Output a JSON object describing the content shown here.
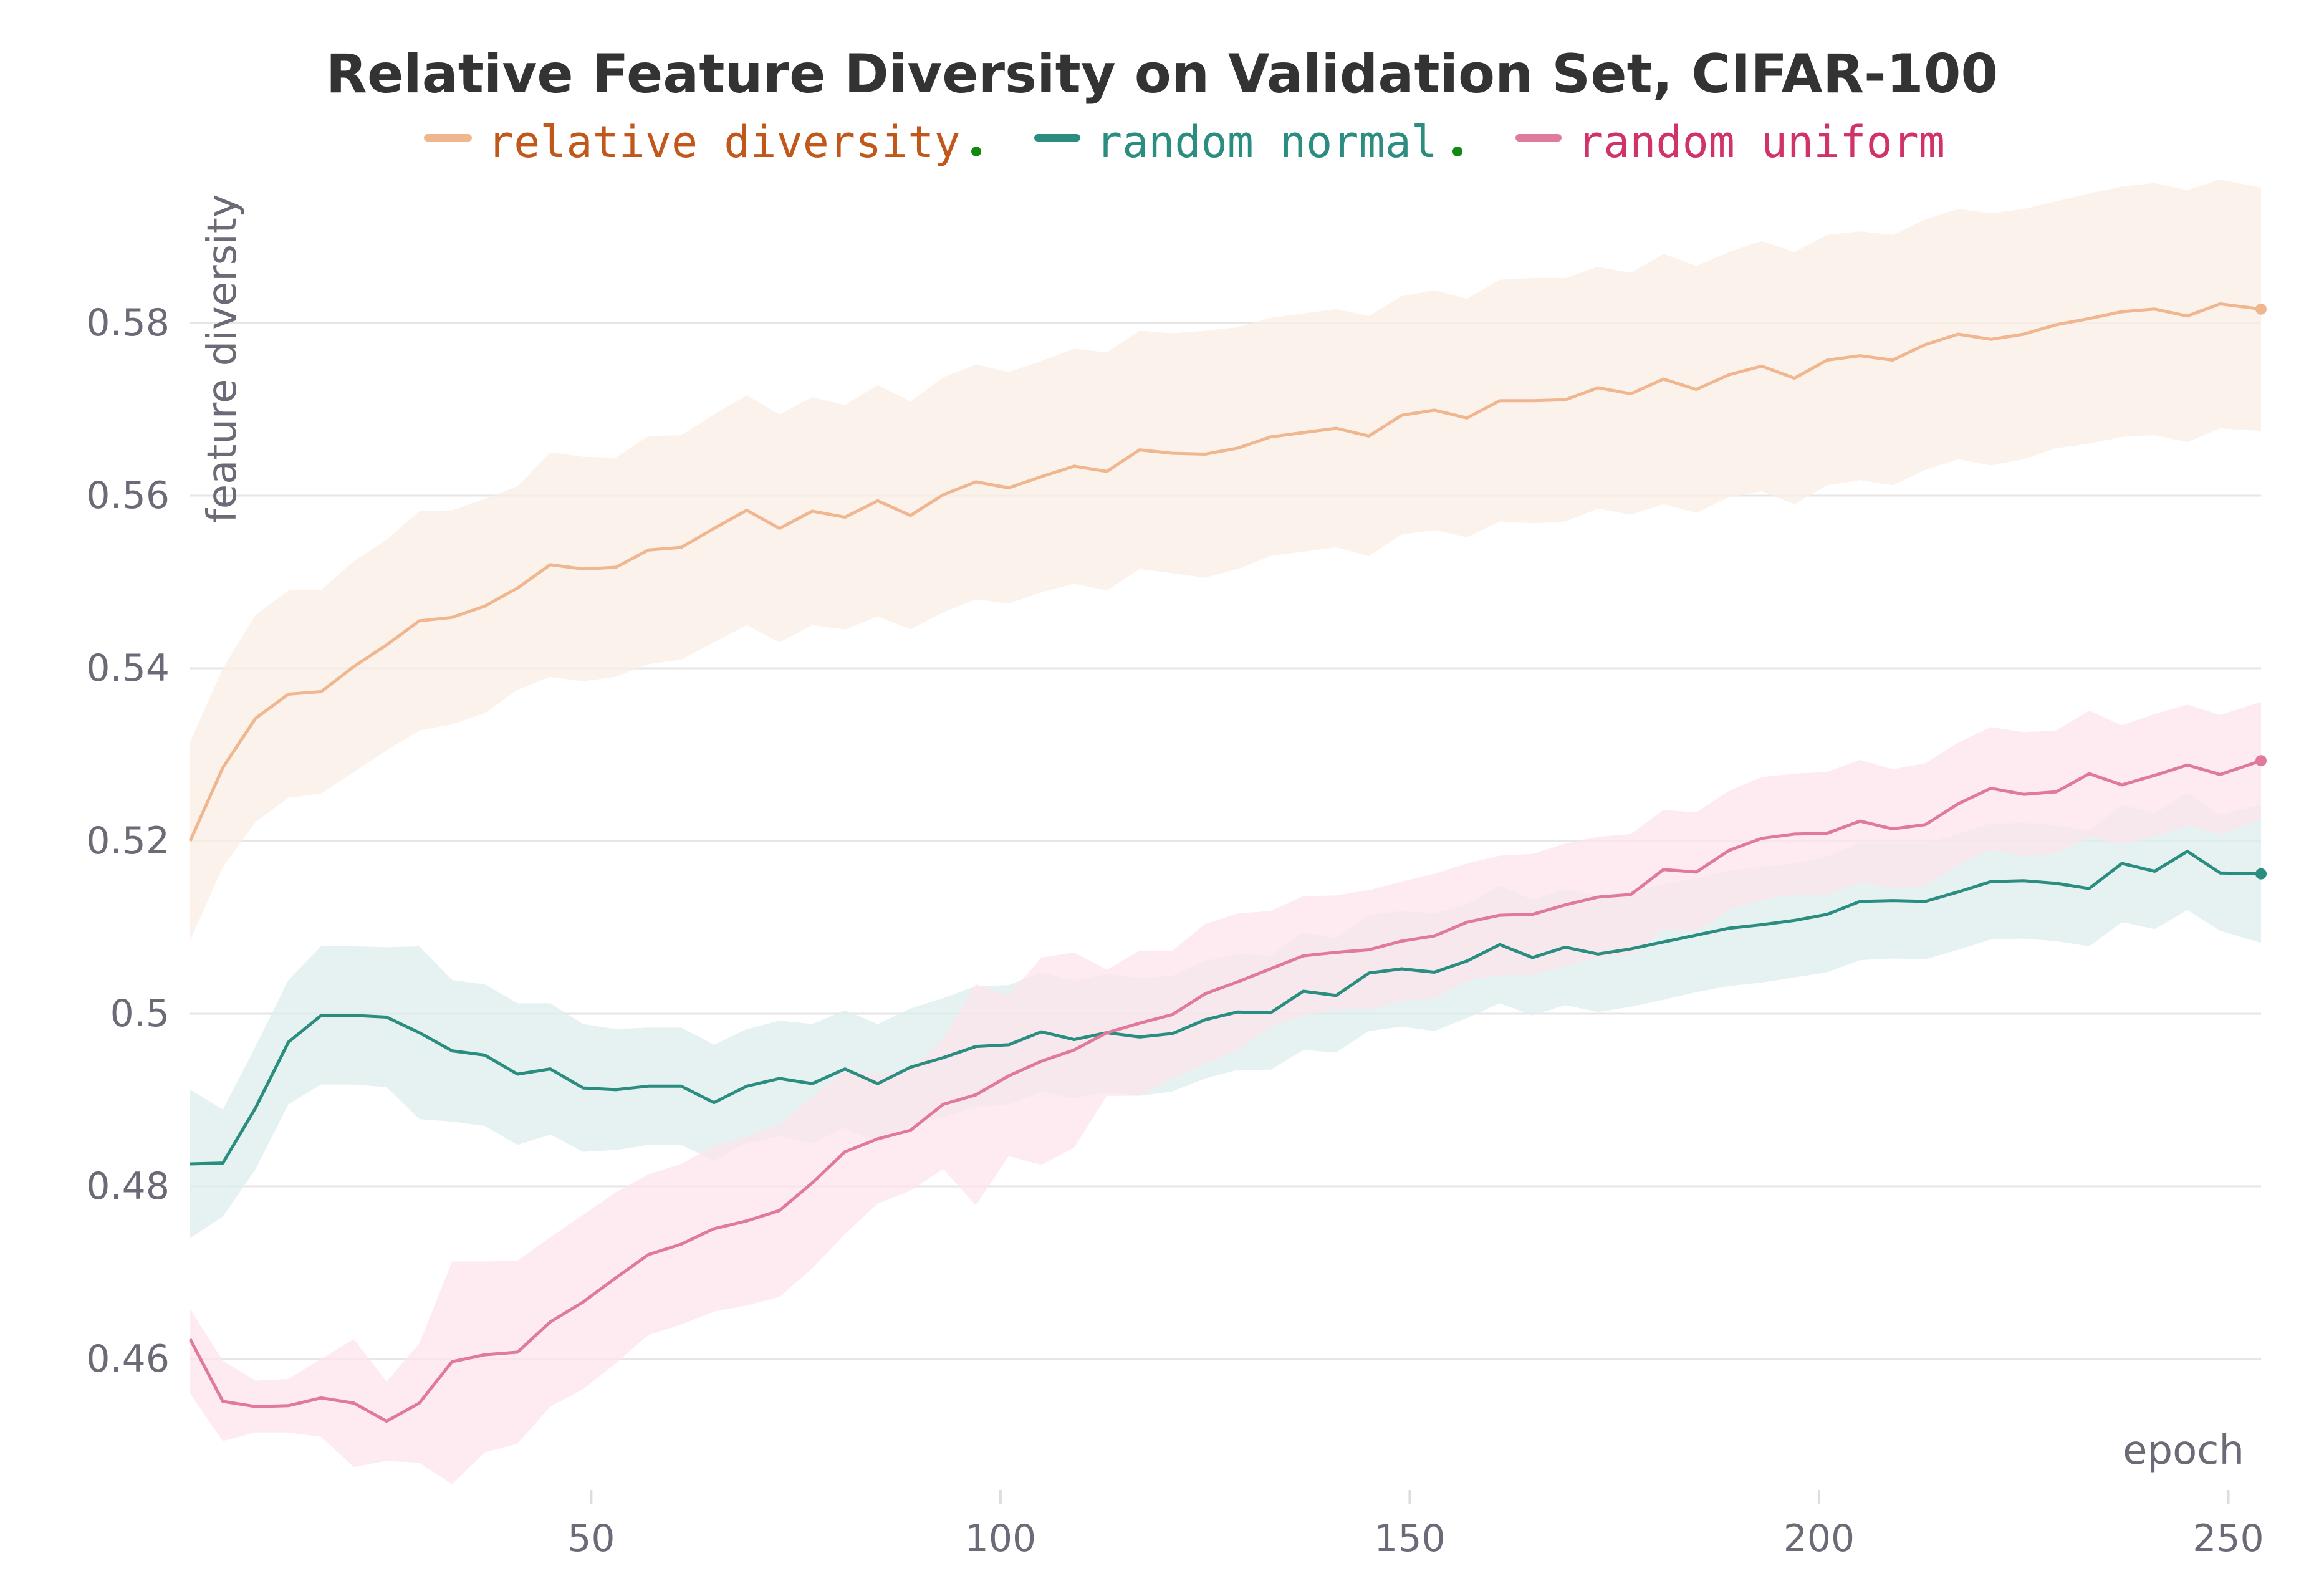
{
  "chart_data": {
    "type": "line",
    "title": "Relative Feature Diversity on Validation Set, CIFAR-100",
    "xlabel": "epoch",
    "ylabel": "feature diversity",
    "xlim": [
      1,
      254
    ],
    "ylim": [
      0.4445,
      0.5965
    ],
    "x_ticks": [
      50,
      100,
      150,
      200,
      250
    ],
    "x_tick_labels": [
      "50",
      "100",
      "150",
      "200",
      "250"
    ],
    "y_ticks": [
      0.46,
      0.48,
      0.5,
      0.52,
      0.54,
      0.56,
      0.58
    ],
    "y_tick_labels": [
      "0.46",
      "0.48",
      "0.5",
      "0.52",
      "0.54",
      "0.56",
      "0.58"
    ],
    "grid": true,
    "legend_position": "top",
    "x": [
      1,
      5,
      9,
      13,
      17,
      21,
      25,
      29,
      33,
      37,
      41,
      45,
      49,
      53,
      57,
      61,
      65,
      69,
      73,
      77,
      81,
      85,
      89,
      93,
      97,
      101,
      105,
      109,
      113,
      117,
      121,
      125,
      129,
      133,
      137,
      141,
      145,
      149,
      153,
      157,
      161,
      165,
      169,
      173,
      177,
      181,
      185,
      189,
      193,
      197,
      201,
      205,
      209,
      213,
      217,
      221,
      225,
      229,
      233,
      237,
      241,
      245,
      249,
      254
    ],
    "series": [
      {
        "name": "relative diversity",
        "color": "#f0b68f",
        "band_color": "#fbeee6",
        "values": [
          0.52,
          0.5285,
          0.5342,
          0.537,
          0.5373,
          0.5402,
          0.5427,
          0.5455,
          0.5459,
          0.5472,
          0.5493,
          0.552,
          0.5515,
          0.5517,
          0.5537,
          0.554,
          0.5562,
          0.5583,
          0.5562,
          0.5582,
          0.5575,
          0.5594,
          0.5577,
          0.5601,
          0.5616,
          0.5609,
          0.5622,
          0.5634,
          0.5628,
          0.5653,
          0.5649,
          0.5648,
          0.5655,
          0.5668,
          0.5673,
          0.5678,
          0.5669,
          0.5693,
          0.5699,
          0.569,
          0.571,
          0.571,
          0.5711,
          0.5725,
          0.5718,
          0.5735,
          0.5723,
          0.574,
          0.575,
          0.5736,
          0.5757,
          0.5762,
          0.5757,
          0.5775,
          0.5787,
          0.5781,
          0.5787,
          0.5798,
          0.5805,
          0.5813,
          0.5816,
          0.5808,
          0.5822,
          0.5816
        ],
        "lower": [
          0.5085,
          0.517,
          0.5222,
          0.525,
          0.5255,
          0.528,
          0.5305,
          0.5328,
          0.5335,
          0.5348,
          0.5375,
          0.539,
          0.5385,
          0.539,
          0.5405,
          0.541,
          0.543,
          0.545,
          0.543,
          0.545,
          0.5445,
          0.546,
          0.5445,
          0.5465,
          0.548,
          0.5475,
          0.5488,
          0.5498,
          0.549,
          0.5515,
          0.551,
          0.5505,
          0.5515,
          0.553,
          0.5535,
          0.554,
          0.553,
          0.5555,
          0.556,
          0.5552,
          0.557,
          0.5568,
          0.557,
          0.5585,
          0.5578,
          0.559,
          0.558,
          0.5598,
          0.5605,
          0.559,
          0.5612,
          0.5618,
          0.5612,
          0.563,
          0.5642,
          0.5635,
          0.5642,
          0.5655,
          0.566,
          0.5668,
          0.567,
          0.5662,
          0.5678,
          0.5675
        ],
        "upper": [
          0.5315,
          0.54,
          0.5462,
          0.549,
          0.5491,
          0.5524,
          0.5549,
          0.5582,
          0.5583,
          0.5596,
          0.5611,
          0.565,
          0.5645,
          0.5644,
          0.5669,
          0.567,
          0.5694,
          0.5716,
          0.5694,
          0.5714,
          0.5705,
          0.5728,
          0.5709,
          0.5737,
          0.5752,
          0.5743,
          0.5756,
          0.577,
          0.5766,
          0.5791,
          0.5788,
          0.5791,
          0.5795,
          0.5806,
          0.5811,
          0.5816,
          0.5808,
          0.5831,
          0.5838,
          0.5828,
          0.585,
          0.5852,
          0.5852,
          0.5865,
          0.5858,
          0.588,
          0.5866,
          0.5882,
          0.5895,
          0.5882,
          0.5902,
          0.5906,
          0.5902,
          0.592,
          0.5932,
          0.5927,
          0.5932,
          0.5941,
          0.595,
          0.5958,
          0.5962,
          0.5954,
          0.5966,
          0.5957
        ]
      },
      {
        "name": "random normal",
        "color": "#2a8d80",
        "band_color": "#dceeec",
        "values": [
          0.4826,
          0.4827,
          0.4891,
          0.4967,
          0.4998,
          0.4998,
          0.4996,
          0.4978,
          0.4957,
          0.4952,
          0.493,
          0.4936,
          0.4914,
          0.4912,
          0.4916,
          0.4916,
          0.4897,
          0.4916,
          0.4925,
          0.4919,
          0.4936,
          0.4919,
          0.4938,
          0.4949,
          0.4962,
          0.4964,
          0.4979,
          0.497,
          0.4978,
          0.4973,
          0.4977,
          0.4993,
          0.5002,
          0.5001,
          0.5026,
          0.5021,
          0.5047,
          0.5052,
          0.5048,
          0.5061,
          0.508,
          0.5065,
          0.5077,
          0.5069,
          0.5075,
          0.5083,
          0.5091,
          0.5099,
          0.5103,
          0.5108,
          0.5115,
          0.513,
          0.5131,
          0.513,
          0.5141,
          0.5153,
          0.5154,
          0.5151,
          0.5145,
          0.5174,
          0.5165,
          0.5188,
          0.5163,
          0.5162
        ],
        "lower": [
          0.474,
          0.4765,
          0.482,
          0.4895,
          0.4918,
          0.4918,
          0.4915,
          0.4878,
          0.4875,
          0.487,
          0.4848,
          0.486,
          0.484,
          0.4842,
          0.4848,
          0.4848,
          0.483,
          0.485,
          0.4858,
          0.485,
          0.4868,
          0.485,
          0.487,
          0.488,
          0.4892,
          0.4895,
          0.491,
          0.4902,
          0.491,
          0.4905,
          0.491,
          0.4925,
          0.4935,
          0.4935,
          0.4958,
          0.4955,
          0.498,
          0.4985,
          0.498,
          0.4995,
          0.5012,
          0.4998,
          0.501,
          0.5002,
          0.5008,
          0.5016,
          0.5025,
          0.5032,
          0.5036,
          0.5042,
          0.5048,
          0.5062,
          0.5064,
          0.5063,
          0.5074,
          0.5086,
          0.5087,
          0.5084,
          0.5078,
          0.5106,
          0.5098,
          0.512,
          0.5096,
          0.5082
        ],
        "upper": [
          0.4912,
          0.4889,
          0.4962,
          0.5039,
          0.5078,
          0.5078,
          0.5077,
          0.5078,
          0.5039,
          0.5034,
          0.5012,
          0.5012,
          0.4988,
          0.4982,
          0.4984,
          0.4984,
          0.4964,
          0.4982,
          0.4992,
          0.4988,
          0.5004,
          0.4988,
          0.5006,
          0.5018,
          0.5032,
          0.5033,
          0.5048,
          0.5038,
          0.5046,
          0.5041,
          0.5044,
          0.5061,
          0.5069,
          0.5067,
          0.5094,
          0.5087,
          0.5114,
          0.5119,
          0.5116,
          0.5127,
          0.5148,
          0.5132,
          0.5144,
          0.5136,
          0.5142,
          0.515,
          0.5157,
          0.5166,
          0.517,
          0.5174,
          0.5182,
          0.5198,
          0.5198,
          0.5197,
          0.5208,
          0.522,
          0.5221,
          0.5218,
          0.5212,
          0.5242,
          0.5232,
          0.5256,
          0.523,
          0.5242
        ]
      },
      {
        "name": "random uniform",
        "color": "#e07a9c",
        "band_color": "#fce4ec",
        "values": [
          0.4623,
          0.4551,
          0.4545,
          0.4546,
          0.4555,
          0.4549,
          0.4528,
          0.4549,
          0.4597,
          0.4605,
          0.4608,
          0.4643,
          0.4666,
          0.4694,
          0.4721,
          0.4733,
          0.4751,
          0.476,
          0.4772,
          0.4804,
          0.484,
          0.4855,
          0.4865,
          0.4895,
          0.4906,
          0.4928,
          0.4945,
          0.4958,
          0.4978,
          0.4989,
          0.4999,
          0.5023,
          0.5037,
          0.5052,
          0.5067,
          0.5071,
          0.5074,
          0.5084,
          0.509,
          0.5106,
          0.5114,
          0.5115,
          0.5126,
          0.5135,
          0.5138,
          0.5167,
          0.5164,
          0.5189,
          0.5203,
          0.5208,
          0.5209,
          0.5223,
          0.5214,
          0.5219,
          0.5243,
          0.5261,
          0.5254,
          0.5257,
          0.5278,
          0.5265,
          0.5276,
          0.5288,
          0.5277,
          0.5293
        ],
        "lower": [
          0.456,
          0.4505,
          0.4515,
          0.4515,
          0.451,
          0.4475,
          0.4482,
          0.448,
          0.4455,
          0.4492,
          0.4502,
          0.4545,
          0.4565,
          0.4595,
          0.4628,
          0.464,
          0.4655,
          0.4662,
          0.4672,
          0.4705,
          0.4745,
          0.478,
          0.4795,
          0.482,
          0.4778,
          0.4835,
          0.4825,
          0.4845,
          0.4905,
          0.4905,
          0.4925,
          0.4942,
          0.4958,
          0.4985,
          0.4998,
          0.5005,
          0.5005,
          0.5015,
          0.5018,
          0.5038,
          0.5045,
          0.5045,
          0.5055,
          0.5065,
          0.5068,
          0.5098,
          0.5095,
          0.512,
          0.5132,
          0.5138,
          0.5138,
          0.5152,
          0.5145,
          0.5148,
          0.5172,
          0.519,
          0.5182,
          0.5186,
          0.5205,
          0.5196,
          0.5205,
          0.5218,
          0.5208,
          0.5225
        ],
        "upper": [
          0.4658,
          0.4598,
          0.4575,
          0.4577,
          0.46,
          0.4623,
          0.4574,
          0.4618,
          0.4713,
          0.4713,
          0.4714,
          0.4741,
          0.4767,
          0.4793,
          0.4814,
          0.4826,
          0.4847,
          0.4858,
          0.4872,
          0.4903,
          0.4935,
          0.493,
          0.4935,
          0.497,
          0.5034,
          0.5021,
          0.5065,
          0.5071,
          0.5051,
          0.5073,
          0.5073,
          0.5104,
          0.5116,
          0.5119,
          0.5136,
          0.5137,
          0.5143,
          0.5153,
          0.5162,
          0.5174,
          0.5183,
          0.5185,
          0.5197,
          0.5205,
          0.5208,
          0.5236,
          0.5233,
          0.5258,
          0.5274,
          0.5278,
          0.528,
          0.5294,
          0.5283,
          0.529,
          0.5314,
          0.5332,
          0.5326,
          0.5328,
          0.5351,
          0.5334,
          0.5347,
          0.5358,
          0.5346,
          0.5361
        ]
      }
    ]
  }
}
